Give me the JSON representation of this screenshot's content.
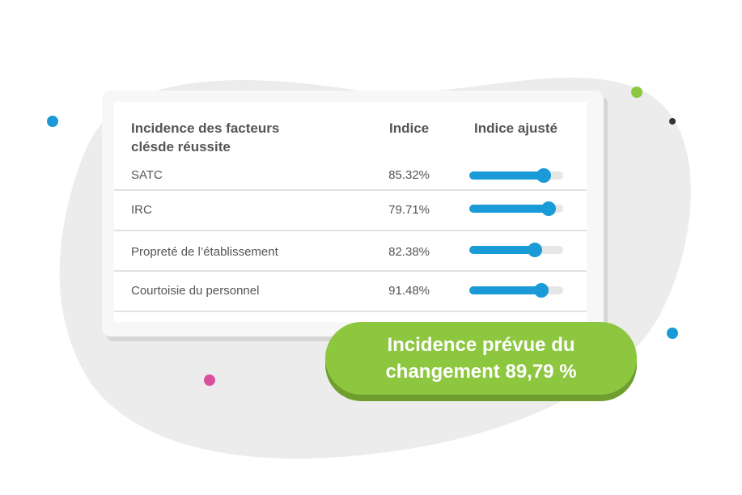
{
  "header": {
    "title_lines": [
      "Incidence des facteurs",
      "clésde réussite"
    ],
    "index": "Indice",
    "adjusted": "Indice ajusté"
  },
  "rows": [
    [
      "SATC",
      "85.32%"
    ],
    [
      "IRC",
      "79.71%"
    ],
    [
      "Propreté de l’établissement",
      "82.38%"
    ],
    [
      "Courtoisie du personnel",
      "91.48%"
    ]
  ],
  "badge": {
    "lines": [
      "Incidence prévue du",
      "changement 89,79 %"
    ]
  }
}
